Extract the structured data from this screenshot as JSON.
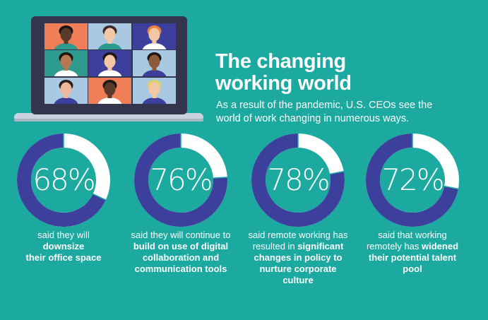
{
  "title": {
    "line1": "The changing",
    "line2": "working world"
  },
  "subtitle": "As a result of the pandemic, U.S. CEOs see the world of work changing in numerous ways.",
  "colors": {
    "background": "#1ba9a0",
    "ring_fill": "#3d3f9c",
    "ring_track": "#ffffff",
    "text": "#ffffff",
    "laptop_frame": "#35344d",
    "laptop_base": "#c9d3df"
  },
  "video_call": {
    "tiles": [
      {
        "bg": "#f07f58",
        "skin": "#5a3a28",
        "hair": "#1e1515",
        "shirt": "#2d9a8d"
      },
      {
        "bg": "#a9c8e2",
        "skin": "#f0c9a8",
        "hair": "#3b2a27",
        "shirt": "#2d9a8d"
      },
      {
        "bg": "#3d3f9c",
        "skin": "#f4c7a3",
        "hair": "#e8823f",
        "shirt": "#ffffff"
      },
      {
        "bg": "#2d9a8d",
        "skin": "#b57a52",
        "hair": "#1e1515",
        "shirt": "#ffffff"
      },
      {
        "bg": "#3d3f9c",
        "skin": "#f4c7a3",
        "hair": "#1e1515",
        "shirt": "#ffffff"
      },
      {
        "bg": "#a9c8e2",
        "skin": "#8a5a3a",
        "hair": "#1e1515",
        "shirt": "#3d3f9c"
      },
      {
        "bg": "#a9c8e2",
        "skin": "#f0b89a",
        "hair": "#2a1f1a",
        "shirt": "#3d3f9c"
      },
      {
        "bg": "#f07f58",
        "skin": "#5a3a28",
        "hair": "#1e1515",
        "shirt": "#ffffff"
      },
      {
        "bg": "#a9c8e2",
        "skin": "#f4c7a3",
        "hair": "#e0d070",
        "shirt": "#3d3f9c"
      }
    ]
  },
  "stats": [
    {
      "value": 68,
      "label": "68%",
      "desc": [
        {
          "t": "said they will",
          "b": false
        },
        {
          "t": "downsize",
          "b": true
        },
        {
          "t": "their office space",
          "b": true
        }
      ]
    },
    {
      "value": 76,
      "label": "76%",
      "desc": [
        {
          "t": "said they will continue to ",
          "b": false
        },
        {
          "t": "build on use of digital collaboration and communication tools",
          "b": true
        }
      ]
    },
    {
      "value": 78,
      "label": "78%",
      "desc": [
        {
          "t": "said remote working has resulted in ",
          "b": false
        },
        {
          "t": "significant changes in policy to nurture corporate culture",
          "b": true
        }
      ]
    },
    {
      "value": 72,
      "label": "72%",
      "desc": [
        {
          "t": "said that working remotely has ",
          "b": false
        },
        {
          "t": "widened their potential talent pool",
          "b": true
        }
      ]
    }
  ]
}
